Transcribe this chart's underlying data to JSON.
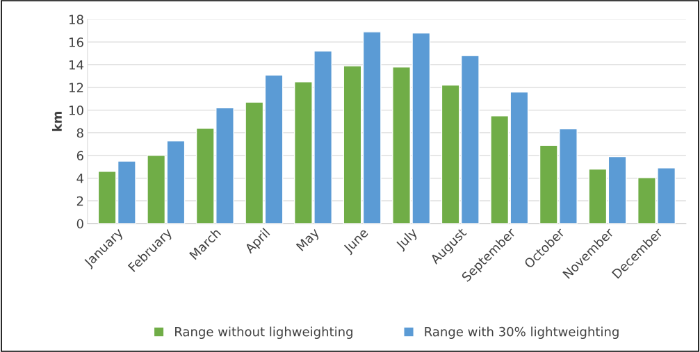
{
  "chart_data": {
    "type": "bar",
    "ylabel": "km",
    "categories": [
      "January",
      "February",
      "March",
      "April",
      "May",
      "June",
      "July",
      "August",
      "September",
      "October",
      "November",
      "December"
    ],
    "series": [
      {
        "name": "Range without lighweighting",
        "color": "#70ad47",
        "values": [
          4.6,
          6.0,
          8.4,
          10.7,
          12.5,
          13.9,
          13.8,
          12.2,
          9.5,
          6.9,
          4.8,
          4.05
        ]
      },
      {
        "name": "Range with 30% lightweighting",
        "color": "#5b9bd5",
        "values": [
          5.5,
          7.3,
          10.2,
          13.1,
          15.2,
          16.9,
          16.8,
          14.8,
          11.6,
          8.35,
          5.9,
          4.9
        ]
      }
    ],
    "ylim": [
      0,
      18
    ],
    "yticks": [
      0,
      2,
      4,
      6,
      8,
      10,
      12,
      14,
      16,
      18
    ],
    "grid": "y",
    "legend": "bottom"
  }
}
